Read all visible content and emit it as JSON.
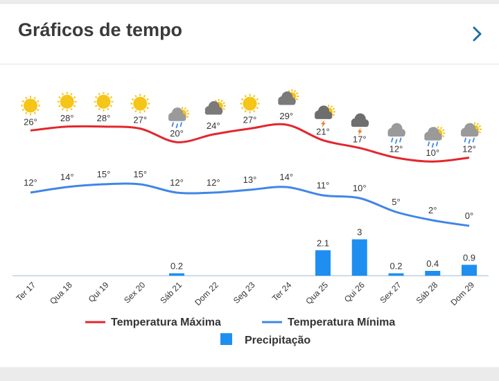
{
  "header": {
    "title": "Gráficos de tempo"
  },
  "colors": {
    "max": "#e3262d",
    "min": "#3f86e8",
    "precip": "#1e8ff0",
    "sun": "#f5c518",
    "cloud": "#8a8a8a"
  },
  "chart_data": {
    "type": "line",
    "categories": [
      "Ter 17",
      "Qua 18",
      "Qui 19",
      "Sex 20",
      "Sáb 21",
      "Dom 22",
      "Seg 23",
      "Ter 24",
      "Qua 25",
      "Qui 26",
      "Sex 27",
      "Sáb 28",
      "Dom 29"
    ],
    "series": [
      {
        "name": "Temperatura Máxima",
        "values": [
          26,
          28,
          28,
          27,
          20,
          24,
          27,
          29,
          21,
          17,
          12,
          10,
          12
        ],
        "labels": [
          "26°",
          "28°",
          "28°",
          "27°",
          "20°",
          "24°",
          "27°",
          "29°",
          "21°",
          "17°",
          "12°",
          "10°",
          "12°"
        ]
      },
      {
        "name": "Temperatura Mínima",
        "values": [
          12,
          14,
          15,
          15,
          12,
          12,
          13,
          14,
          11,
          10,
          5,
          2,
          0
        ],
        "labels": [
          "12°",
          "14°",
          "15°",
          "15°",
          "12°",
          "12°",
          "13°",
          "14°",
          "11°",
          "10°",
          "5°",
          "2°",
          "0°"
        ]
      },
      {
        "name": "Precipitação",
        "type": "bar",
        "values": [
          0,
          0,
          0,
          0,
          0.2,
          0,
          0,
          0,
          2.1,
          3,
          0.2,
          0.4,
          0.9
        ],
        "labels": [
          "",
          "",
          "",
          "",
          "0.2",
          "",
          "",
          "",
          "2.1",
          "3",
          "0.2",
          "0.4",
          "0.9"
        ]
      }
    ],
    "icons": [
      "sun-icon",
      "sun-icon",
      "sun-icon",
      "sun-icon",
      "rain-cloud-sun-icon",
      "cloud-sun-icon",
      "sun-icon",
      "cloud-sun-icon",
      "thunder-cloud-sun-icon",
      "thunder-cloud-icon",
      "rain-cloud-icon",
      "rain-cloud-sun-icon",
      "rain-cloud-sun-icon"
    ]
  }
}
